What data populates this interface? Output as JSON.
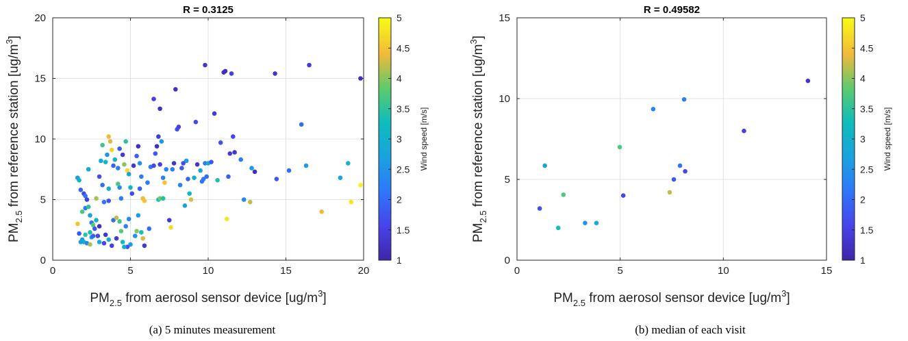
{
  "chart_data": [
    {
      "type": "scatter",
      "title": "R = 0.3125",
      "xlabel": {
        "main": "PM",
        "sub": "2.5",
        "rest": " from aerosol sensor device [ug/m",
        "sup": "3",
        "end": "]"
      },
      "ylabel": {
        "main": "PM",
        "sub": "2.5",
        "rest": " from reference station [ug/m",
        "sup": "3",
        "end": "]"
      },
      "xlim": [
        0,
        20
      ],
      "ylim": [
        0,
        20
      ],
      "xticks": [
        "0",
        "5",
        "10",
        "15",
        "20"
      ],
      "yticks": [
        "0",
        "5",
        "10",
        "15",
        "20"
      ],
      "grid": true,
      "colorbar": {
        "label": "Wind speed [m/s]",
        "min": 1,
        "max": 5,
        "ticks": [
          "1",
          "1.5",
          "2",
          "2.5",
          "3",
          "3.5",
          "4",
          "4.5",
          "5"
        ]
      },
      "caption": "(a) 5 minutes measurement",
      "points": [
        [
          1.6,
          6.8,
          2.6
        ],
        [
          1.7,
          6.6,
          3.0
        ],
        [
          1.8,
          5.8,
          1.9
        ],
        [
          2.0,
          5.5,
          1.6
        ],
        [
          2.1,
          5.3,
          2.1
        ],
        [
          2.3,
          7.5,
          2.8
        ],
        [
          2.1,
          4.3,
          2.2
        ],
        [
          2.3,
          4.4,
          3.5
        ],
        [
          2.4,
          3.7,
          2.7
        ],
        [
          2.5,
          3.1,
          2.2
        ],
        [
          2.4,
          2.3,
          3.4
        ],
        [
          2.6,
          2.9,
          3.8
        ],
        [
          1.6,
          3.0,
          4.5
        ],
        [
          1.7,
          2.2,
          1.8
        ],
        [
          1.9,
          1.7,
          2.6
        ],
        [
          2.0,
          1.5,
          3.0
        ],
        [
          2.1,
          2.1,
          3.5
        ],
        [
          2.2,
          1.4,
          2.3
        ],
        [
          2.4,
          1.3,
          4.1
        ],
        [
          2.5,
          1.9,
          2.5
        ],
        [
          2.7,
          2.6,
          1.8
        ],
        [
          2.8,
          3.3,
          3.0
        ],
        [
          2.9,
          2.0,
          1.6
        ],
        [
          3.0,
          1.5,
          2.9
        ],
        [
          3.0,
          6.9,
          1.7
        ],
        [
          3.1,
          8.2,
          2.9
        ],
        [
          3.2,
          9.5,
          3.6
        ],
        [
          3.4,
          8.1,
          3.2
        ],
        [
          3.6,
          10.2,
          4.4
        ],
        [
          3.7,
          9.8,
          4.3
        ],
        [
          3.8,
          9.1,
          4.6
        ],
        [
          3.5,
          8.7,
          2.5
        ],
        [
          3.9,
          7.8,
          1.9
        ],
        [
          3.2,
          6.2,
          2.0
        ],
        [
          3.6,
          5.9,
          3.0
        ],
        [
          3.3,
          4.8,
          2.1
        ],
        [
          3.4,
          2.1,
          1.3
        ],
        [
          3.6,
          1.7,
          2.9
        ],
        [
          3.8,
          1.2,
          1.5
        ],
        [
          3.9,
          3.3,
          2.0
        ],
        [
          4.1,
          3.5,
          4.2
        ],
        [
          4.3,
          3.2,
          3.6
        ],
        [
          4.4,
          2.4,
          3.8
        ],
        [
          4.5,
          1.5,
          3.2
        ],
        [
          4.7,
          2.8,
          2.3
        ],
        [
          4.9,
          3.4,
          2.4
        ],
        [
          5.0,
          1.3,
          2.6
        ],
        [
          4.8,
          1.1,
          1.7
        ],
        [
          4.0,
          8.3,
          3.0
        ],
        [
          4.2,
          7.6,
          2.2
        ],
        [
          4.3,
          9.2,
          1.8
        ],
        [
          4.5,
          8.7,
          1.4
        ],
        [
          4.6,
          7.9,
          4.0
        ],
        [
          4.7,
          9.8,
          3.5
        ],
        [
          4.8,
          7.4,
          4.7
        ],
        [
          4.9,
          7.1,
          2.7
        ],
        [
          5.0,
          6.0,
          3.1
        ],
        [
          5.1,
          5.5,
          1.6
        ],
        [
          4.3,
          6.0,
          2.4
        ],
        [
          4.4,
          5.1,
          2.2
        ],
        [
          5.2,
          7.8,
          1.3
        ],
        [
          5.4,
          8.6,
          1.9
        ],
        [
          5.5,
          9.4,
          1.2
        ],
        [
          5.6,
          8.0,
          2.5
        ],
        [
          5.7,
          6.9,
          2.2
        ],
        [
          5.8,
          5.1,
          4.4
        ],
        [
          5.9,
          4.9,
          4.5
        ],
        [
          5.5,
          3.7,
          2.6
        ],
        [
          5.7,
          2.3,
          3.3
        ],
        [
          5.9,
          1.2,
          1.3
        ],
        [
          5.4,
          2.4,
          4.0
        ],
        [
          6.2,
          2.6,
          2.0
        ],
        [
          6.3,
          7.7,
          2.2
        ],
        [
          6.5,
          7.8,
          1.6
        ],
        [
          6.6,
          8.8,
          1.8
        ],
        [
          6.7,
          9.4,
          1.2
        ],
        [
          6.8,
          10.2,
          1.4
        ],
        [
          6.9,
          7.9,
          1.5
        ],
        [
          7.0,
          9.8,
          2.6
        ],
        [
          7.1,
          6.8,
          2.3
        ],
        [
          7.2,
          6.4,
          4.5
        ],
        [
          6.8,
          5.0,
          3.3
        ],
        [
          6.9,
          5.1,
          3.9
        ],
        [
          7.1,
          5.1,
          3.4
        ],
        [
          6.5,
          13.3,
          1.5
        ],
        [
          6.9,
          12.5,
          1.2
        ],
        [
          7.5,
          3.3,
          1.4
        ],
        [
          7.6,
          2.7,
          4.7
        ],
        [
          7.7,
          7.5,
          2.2
        ],
        [
          7.8,
          8.0,
          1.3
        ],
        [
          7.9,
          14.1,
          1.2
        ],
        [
          8.0,
          10.8,
          1.7
        ],
        [
          8.1,
          11.0,
          1.5
        ],
        [
          8.2,
          6.2,
          2.3
        ],
        [
          8.3,
          7.6,
          1.8
        ],
        [
          8.5,
          4.5,
          2.7
        ],
        [
          8.6,
          8.2,
          2.6
        ],
        [
          8.7,
          6.7,
          1.9
        ],
        [
          8.8,
          5.5,
          3.2
        ],
        [
          8.9,
          5.0,
          4.3
        ],
        [
          9.1,
          6.8,
          3.0
        ],
        [
          9.2,
          11.4,
          1.6
        ],
        [
          9.3,
          7.9,
          1.3
        ],
        [
          9.5,
          7.4,
          2.7
        ],
        [
          9.7,
          6.7,
          2.1
        ],
        [
          9.8,
          8.0,
          2.2
        ],
        [
          9.9,
          6.9,
          2.0
        ],
        [
          10.0,
          8.0,
          2.9
        ],
        [
          9.8,
          16.1,
          1.3
        ],
        [
          10.4,
          12.1,
          1.4
        ],
        [
          10.6,
          6.6,
          3.4
        ],
        [
          10.8,
          9.7,
          1.7
        ],
        [
          11.0,
          15.5,
          1.2
        ],
        [
          11.1,
          15.6,
          1.2
        ],
        [
          11.2,
          3.4,
          4.8
        ],
        [
          11.3,
          6.9,
          1.9
        ],
        [
          11.4,
          8.8,
          1.4
        ],
        [
          11.5,
          15.4,
          1.5
        ],
        [
          11.6,
          10.2,
          1.6
        ],
        [
          11.7,
          8.9,
          1.3
        ],
        [
          12.1,
          8.3,
          2.2
        ],
        [
          12.3,
          5.0,
          2.3
        ],
        [
          12.7,
          4.8,
          4.2
        ],
        [
          12.8,
          7.6,
          2.6
        ],
        [
          13.0,
          7.3,
          1.2
        ],
        [
          14.3,
          15.4,
          1.3
        ],
        [
          14.4,
          6.7,
          1.8
        ],
        [
          15.2,
          7.4,
          2.0
        ],
        [
          16.0,
          11.2,
          2.0
        ],
        [
          16.3,
          7.8,
          2.6
        ],
        [
          16.5,
          16.1,
          1.4
        ],
        [
          17.3,
          4.0,
          4.4
        ],
        [
          18.5,
          6.8,
          2.8
        ],
        [
          19.0,
          8.0,
          3.0
        ],
        [
          19.2,
          4.8,
          4.8
        ],
        [
          19.8,
          6.2,
          4.9
        ],
        [
          19.8,
          15.0,
          1.2
        ],
        [
          1.8,
          1.5,
          2.7
        ],
        [
          2.6,
          2.0,
          1.9
        ],
        [
          3.3,
          1.4,
          1.6
        ],
        [
          4.1,
          1.8,
          1.4
        ],
        [
          4.6,
          1.1,
          2.9
        ],
        [
          5.3,
          2.0,
          2.5
        ],
        [
          5.8,
          1.8,
          4.3
        ],
        [
          3.0,
          2.8,
          1.2
        ],
        [
          2.2,
          5.0,
          1.5
        ],
        [
          1.9,
          4.0,
          3.7
        ],
        [
          2.8,
          5.1,
          4.1
        ],
        [
          3.6,
          4.9,
          1.7
        ],
        [
          4.2,
          6.3,
          3.7
        ],
        [
          5.6,
          5.9,
          1.9
        ],
        [
          6.1,
          6.4,
          2.2
        ],
        [
          7.3,
          7.5,
          2.3
        ],
        [
          8.4,
          8.0,
          1.7
        ],
        [
          9.6,
          6.5,
          2.1
        ],
        [
          10.2,
          8.1,
          1.8
        ]
      ]
    },
    {
      "type": "scatter",
      "title": "R = 0.49582",
      "xlabel": {
        "main": "PM",
        "sub": "2.5",
        "rest": " from aerosol sensor device [ug/m",
        "sup": "3",
        "end": "]"
      },
      "ylabel": {
        "main": "PM",
        "sub": "2.5",
        "rest": " from reference station [ug/m",
        "sup": "3",
        "end": "]"
      },
      "xlim": [
        0,
        15
      ],
      "ylim": [
        0,
        15
      ],
      "xticks": [
        "0",
        "5",
        "10",
        "15"
      ],
      "yticks": [
        "0",
        "5",
        "10",
        "15"
      ],
      "grid": true,
      "colorbar": {
        "label": "Wind speed [m/s]",
        "min": 1,
        "max": 5,
        "ticks": [
          "1",
          "1.5",
          "2",
          "2.5",
          "3",
          "3.5",
          "4",
          "4.5",
          "5"
        ]
      },
      "caption": "(b) median of each visit",
      "points": [
        [
          1.1,
          3.2,
          1.7
        ],
        [
          1.35,
          5.85,
          2.7
        ],
        [
          2.0,
          2.0,
          3.3
        ],
        [
          2.25,
          4.05,
          3.7
        ],
        [
          3.3,
          2.3,
          2.5
        ],
        [
          3.85,
          2.3,
          2.9
        ],
        [
          4.98,
          7.0,
          3.7
        ],
        [
          5.15,
          4.0,
          1.6
        ],
        [
          6.6,
          9.35,
          2.3
        ],
        [
          7.4,
          4.2,
          4.2
        ],
        [
          7.6,
          5.0,
          1.8
        ],
        [
          7.9,
          5.85,
          2.1
        ],
        [
          8.15,
          5.5,
          1.6
        ],
        [
          8.1,
          9.95,
          2.2
        ],
        [
          11.0,
          8.0,
          1.5
        ],
        [
          14.1,
          11.1,
          1.3
        ]
      ]
    }
  ]
}
